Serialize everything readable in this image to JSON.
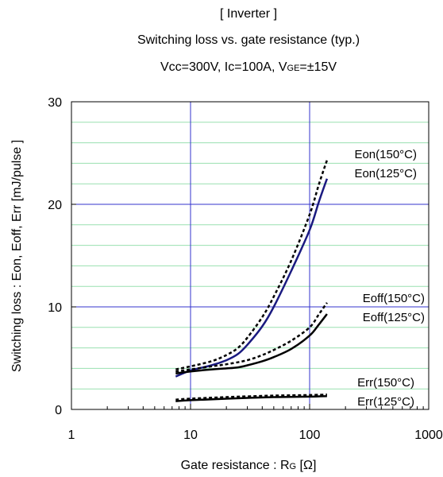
{
  "chart_data": {
    "type": "line",
    "title_lines": [
      "[ Inverter ]",
      "Switching loss  vs.  gate resistance  (typ.)",
      "Vcc=300V, Ic=100A, V",
      "GE",
      "=±15V"
    ],
    "xlabel_main": "Gate resistance : R",
    "xlabel_sub": "G",
    "xlabel_unit": " [Ω]",
    "ylabel": "Switching loss  : Eon, Eoff, Err  [mJ/pulse ]",
    "x_scale": "log",
    "xlim": [
      1,
      1000
    ],
    "ylim": [
      0,
      30
    ],
    "x_ticks": [
      {
        "value": 1,
        "label": "1"
      },
      {
        "value": 10,
        "label": "10"
      },
      {
        "value": 100,
        "label": "100"
      },
      {
        "value": 1000,
        "label": "1000"
      }
    ],
    "y_ticks": [
      {
        "value": 0,
        "label": "0"
      },
      {
        "value": 10,
        "label": "10"
      },
      {
        "value": 20,
        "label": "20"
      },
      {
        "value": 30,
        "label": "30"
      }
    ],
    "minor_y_step": 2,
    "grid": true,
    "colors": {
      "major_grid": "#3333cc",
      "minor_grid": "#99e0b0",
      "eon_125": "#1a1a80",
      "solid": "#000000",
      "dashed": "#000000"
    },
    "series": [
      {
        "name": "Eon(150°C)",
        "style": "dashed",
        "color": "#000000",
        "points": [
          [
            7.5,
            3.9
          ],
          [
            10,
            4.2
          ],
          [
            15,
            4.7
          ],
          [
            20,
            5.3
          ],
          [
            25,
            6.0
          ],
          [
            30,
            7.0
          ],
          [
            40,
            9.0
          ],
          [
            50,
            11.0
          ],
          [
            70,
            14.5
          ],
          [
            100,
            19.0
          ],
          [
            120,
            22.0
          ],
          [
            140,
            24.3
          ]
        ]
      },
      {
        "name": "Eon(125°C)",
        "style": "solid",
        "color": "#1a1a80",
        "points": [
          [
            7.5,
            3.2
          ],
          [
            10,
            3.8
          ],
          [
            15,
            4.3
          ],
          [
            20,
            4.8
          ],
          [
            25,
            5.4
          ],
          [
            30,
            6.3
          ],
          [
            40,
            8.1
          ],
          [
            50,
            10.0
          ],
          [
            70,
            13.5
          ],
          [
            100,
            17.5
          ],
          [
            120,
            20.3
          ],
          [
            140,
            22.5
          ]
        ]
      },
      {
        "name": "Eoff(150°C)",
        "style": "dashed",
        "color": "#000000",
        "points": [
          [
            7.5,
            3.7
          ],
          [
            10,
            3.9
          ],
          [
            15,
            4.2
          ],
          [
            20,
            4.4
          ],
          [
            30,
            4.8
          ],
          [
            40,
            5.3
          ],
          [
            50,
            5.8
          ],
          [
            70,
            6.7
          ],
          [
            100,
            8.0
          ],
          [
            120,
            9.3
          ],
          [
            140,
            10.4
          ]
        ]
      },
      {
        "name": "Eoff(125°C)",
        "style": "solid",
        "color": "#000000",
        "points": [
          [
            7.5,
            3.5
          ],
          [
            10,
            3.7
          ],
          [
            15,
            3.9
          ],
          [
            20,
            4.0
          ],
          [
            25,
            4.1
          ],
          [
            30,
            4.3
          ],
          [
            40,
            4.7
          ],
          [
            50,
            5.1
          ],
          [
            70,
            5.9
          ],
          [
            100,
            7.2
          ],
          [
            120,
            8.3
          ],
          [
            140,
            9.3
          ]
        ]
      },
      {
        "name": "Err(150°C)",
        "style": "dashed",
        "color": "#000000",
        "points": [
          [
            7.5,
            0.95
          ],
          [
            10,
            1.05
          ],
          [
            20,
            1.2
          ],
          [
            50,
            1.35
          ],
          [
            100,
            1.4
          ],
          [
            140,
            1.45
          ]
        ]
      },
      {
        "name": "Err(125°C)",
        "style": "solid",
        "color": "#000000",
        "points": [
          [
            7.5,
            0.8
          ],
          [
            10,
            0.9
          ],
          [
            20,
            1.05
          ],
          [
            50,
            1.2
          ],
          [
            100,
            1.25
          ],
          [
            140,
            1.3
          ]
        ]
      }
    ],
    "labels": [
      {
        "text": "Eon(150°C)",
        "series": "Eon(150°C)"
      },
      {
        "text": "Eon(125°C)",
        "series": "Eon(125°C)"
      },
      {
        "text": "Eoff(150°C)",
        "series": "Eoff(150°C)"
      },
      {
        "text": "Eoff(125°C)",
        "series": "Eoff(125°C)"
      },
      {
        "text": "Err(150°C)",
        "series": "Err(150°C)"
      },
      {
        "text": "Err(125°C)",
        "series": "Err(125°C)"
      }
    ]
  }
}
